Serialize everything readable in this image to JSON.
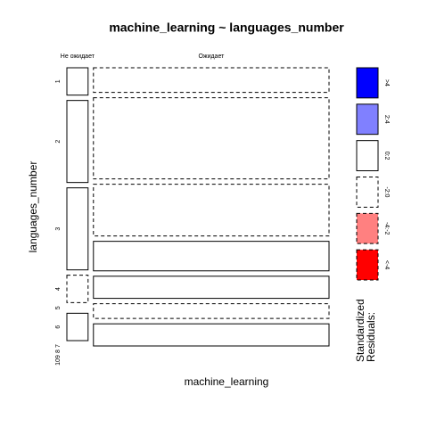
{
  "chart_data": {
    "type": "mosaic",
    "title": "machine_learning ~ languages_number",
    "xlabel": "machine_learning",
    "ylabel": "languages_number",
    "rows": [
      "1",
      "2",
      "3",
      "4",
      "5",
      "6",
      "7",
      "8",
      "9",
      "10"
    ],
    "columns": [
      {
        "name": "Не ожидает",
        "counts": [
          1,
          3,
          3,
          1,
          0,
          1,
          0,
          0,
          0,
          0
        ],
        "styles": [
          "solid",
          "solid",
          "solid",
          "dashed",
          "dashed",
          "solid",
          "dashed",
          "dashed",
          "dashed",
          "dashed"
        ]
      },
      {
        "name": "Ожидает",
        "counts": [
          10,
          33,
          21,
          12,
          9,
          6,
          9,
          0,
          0,
          0
        ],
        "styles": [
          "dashed",
          "dashed",
          "dashed",
          "solid",
          "solid",
          "dashed",
          "solid",
          "solid",
          "solid",
          "solid"
        ]
      }
    ],
    "legend": {
      "title": [
        "Standardized",
        "Residuals:"
      ],
      "labels": [
        ">4",
        "2:4",
        "0:2",
        "-2:0",
        "-4:-2",
        "<-4"
      ],
      "colors": [
        "#0000ff",
        "#8080ff",
        "#ffffff",
        "#ffffff",
        "#ff8080",
        "#ff0000"
      ],
      "styles": [
        "solid",
        "solid",
        "solid",
        "dashed",
        "dashed",
        "dashed"
      ]
    }
  }
}
